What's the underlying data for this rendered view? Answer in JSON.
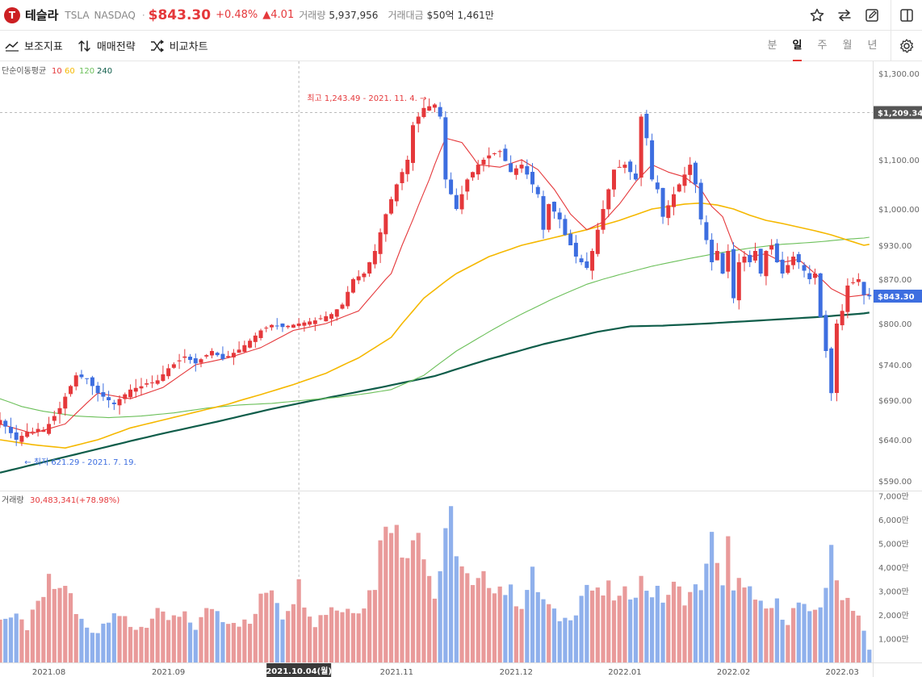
{
  "header": {
    "logo_letter": "T",
    "name": "테슬라",
    "ticker": "TSLA",
    "exchange": "NASDAQ",
    "separator": "·",
    "price": "$843.30",
    "change_pct": "+0.48%",
    "change_abs": "▲4.01",
    "volume_label": "거래량",
    "volume_value": "5,937,956",
    "turnover_label": "거래대금",
    "turnover_value": "$50억 1,461만"
  },
  "toolbar": {
    "indicators_label": "보조지표",
    "strategy_label": "매매전략",
    "compare_label": "비교차트",
    "periods": [
      "분",
      "일",
      "주",
      "월",
      "년"
    ],
    "active_period": "일"
  },
  "colors": {
    "up": "#e5383b",
    "down": "#3d6ee0",
    "up_volume": "#e99a9a",
    "down_volume": "#8fb0ec",
    "ma10": "#e5383b",
    "ma60": "#f5b800",
    "ma120": "#6cc05a",
    "ma240": "#0f5d4a",
    "tesla": "#cc1f22"
  },
  "chart_data": {
    "type": "candlestick",
    "legend": {
      "title": "단순이동평균",
      "periods": [
        "10",
        "60",
        "120",
        "240"
      ]
    },
    "price_ticks": [
      "$1,300.00",
      "$1,100.00",
      "$1,000.00",
      "$930.00",
      "$870.00",
      "$800.00",
      "$740.00",
      "$690.00",
      "$640.00",
      "$590.00"
    ],
    "price_tick_values": [
      1300,
      1100,
      1000,
      930,
      870,
      800,
      740,
      690,
      640,
      590
    ],
    "x_labels": [
      "2021.08",
      "2021.09",
      "2021.11",
      "2021.12",
      "2022.01",
      "2022.02",
      "2022.03"
    ],
    "x_label_index": [
      9,
      31,
      73,
      95,
      115,
      135,
      155
    ],
    "crosshair": {
      "label": "2021.10.04(월)",
      "index": 55,
      "price": 1209.34,
      "price_label": "$1,209.34"
    },
    "last_price": {
      "value": 843.3,
      "label": "$843.30"
    },
    "high_annotation": {
      "text": "최고 1,243.49 - 2021. 11. 4. →",
      "value": 1243.49,
      "index": 80
    },
    "low_annotation": {
      "text": "← 최저 621.29 - 2021. 7. 19.",
      "value": 621.29,
      "index": 3
    },
    "volume": {
      "title": "거래량",
      "value": "30,483,341",
      "change": "(+78.98%)",
      "ticks": [
        "7,000만",
        "6,000만",
        "5,000만",
        "4,000만",
        "3,000만",
        "2,000만",
        "1,000만"
      ],
      "tick_values": [
        70,
        60,
        50,
        40,
        30,
        20,
        10
      ],
      "unit": "만"
    },
    "price_ylim": [
      590,
      1300
    ],
    "close_anchors": [
      [
        0,
        665
      ],
      [
        3,
        640
      ],
      [
        5,
        650
      ],
      [
        8,
        650
      ],
      [
        11,
        680
      ],
      [
        14,
        725
      ],
      [
        16,
        720
      ],
      [
        18,
        700
      ],
      [
        21,
        685
      ],
      [
        24,
        705
      ],
      [
        27,
        712
      ],
      [
        29,
        718
      ],
      [
        31,
        735
      ],
      [
        34,
        752
      ],
      [
        36,
        742
      ],
      [
        39,
        760
      ],
      [
        41,
        748
      ],
      [
        44,
        762
      ],
      [
        46,
        775
      ],
      [
        48,
        790
      ],
      [
        50,
        798
      ],
      [
        52,
        795
      ],
      [
        55,
        800
      ],
      [
        58,
        805
      ],
      [
        61,
        815
      ],
      [
        63,
        830
      ],
      [
        65,
        870
      ],
      [
        67,
        880
      ],
      [
        69,
        920
      ],
      [
        71,
        990
      ],
      [
        73,
        1050
      ],
      [
        75,
        1100
      ],
      [
        76,
        1180
      ],
      [
        78,
        1220
      ],
      [
        80,
        1228
      ],
      [
        81,
        1200
      ],
      [
        82,
        1060
      ],
      [
        83,
        1030
      ],
      [
        84,
        1000
      ],
      [
        86,
        1060
      ],
      [
        88,
        1090
      ],
      [
        90,
        1110
      ],
      [
        92,
        1120
      ],
      [
        94,
        1075
      ],
      [
        96,
        1090
      ],
      [
        98,
        1050
      ],
      [
        99,
        1030
      ],
      [
        100,
        960
      ],
      [
        101,
        1010
      ],
      [
        103,
        980
      ],
      [
        104,
        950
      ],
      [
        106,
        910
      ],
      [
        108,
        890
      ],
      [
        109,
        920
      ],
      [
        111,
        1000
      ],
      [
        113,
        1080
      ],
      [
        115,
        1090
      ],
      [
        117,
        1060
      ],
      [
        118,
        1200
      ],
      [
        119,
        1150
      ],
      [
        120,
        1060
      ],
      [
        121,
        1040
      ],
      [
        122,
        985
      ],
      [
        124,
        1030
      ],
      [
        125,
        1050
      ],
      [
        127,
        1090
      ],
      [
        128,
        1050
      ],
      [
        129,
        980
      ],
      [
        130,
        940
      ],
      [
        131,
        900
      ],
      [
        132,
        920
      ],
      [
        133,
        880
      ],
      [
        134,
        920
      ],
      [
        135,
        840
      ],
      [
        136,
        900
      ],
      [
        137,
        910
      ],
      [
        138,
        900
      ],
      [
        139,
        920
      ],
      [
        140,
        880
      ],
      [
        141,
        920
      ],
      [
        142,
        930
      ],
      [
        143,
        900
      ],
      [
        144,
        880
      ],
      [
        146,
        910
      ],
      [
        147,
        900
      ],
      [
        149,
        870
      ],
      [
        150,
        880
      ],
      [
        151,
        810
      ],
      [
        152,
        760
      ],
      [
        153,
        700
      ],
      [
        154,
        800
      ],
      [
        155,
        820
      ],
      [
        156,
        860
      ],
      [
        158,
        870
      ],
      [
        159,
        845
      ],
      [
        160,
        843
      ]
    ],
    "volume_anchors": [
      [
        0,
        20
      ],
      [
        3,
        18
      ],
      [
        5,
        15
      ],
      [
        8,
        28
      ],
      [
        9,
        33
      ],
      [
        11,
        30
      ],
      [
        12,
        34
      ],
      [
        14,
        20
      ],
      [
        16,
        15
      ],
      [
        18,
        13
      ],
      [
        21,
        23
      ],
      [
        24,
        14
      ],
      [
        27,
        16
      ],
      [
        29,
        20
      ],
      [
        31,
        18
      ],
      [
        34,
        19
      ],
      [
        36,
        15
      ],
      [
        39,
        24
      ],
      [
        41,
        19
      ],
      [
        44,
        17
      ],
      [
        46,
        16
      ],
      [
        48,
        26
      ],
      [
        50,
        33
      ],
      [
        52,
        20
      ],
      [
        55,
        32
      ],
      [
        58,
        17
      ],
      [
        61,
        24
      ],
      [
        63,
        22
      ],
      [
        65,
        23
      ],
      [
        67,
        25
      ],
      [
        69,
        34
      ],
      [
        71,
        63
      ],
      [
        72,
        63
      ],
      [
        74,
        45
      ],
      [
        76,
        55
      ],
      [
        77,
        62
      ],
      [
        78,
        45
      ],
      [
        80,
        28
      ],
      [
        82,
        50
      ],
      [
        83,
        60
      ],
      [
        85,
        40
      ],
      [
        87,
        30
      ],
      [
        88,
        33
      ],
      [
        90,
        35
      ],
      [
        92,
        32
      ],
      [
        94,
        29
      ],
      [
        96,
        25
      ],
      [
        98,
        36
      ],
      [
        100,
        26
      ],
      [
        102,
        20
      ],
      [
        104,
        18
      ],
      [
        106,
        23
      ],
      [
        108,
        33
      ],
      [
        110,
        28
      ],
      [
        112,
        30
      ],
      [
        114,
        26
      ],
      [
        116,
        30
      ],
      [
        118,
        34
      ],
      [
        120,
        30
      ],
      [
        122,
        27
      ],
      [
        124,
        31
      ],
      [
        126,
        28
      ],
      [
        128,
        30
      ],
      [
        130,
        38
      ],
      [
        131,
        50
      ],
      [
        132,
        46
      ],
      [
        133,
        33
      ],
      [
        134,
        49
      ],
      [
        135,
        28
      ],
      [
        137,
        36
      ],
      [
        139,
        24
      ],
      [
        141,
        22
      ],
      [
        143,
        24
      ],
      [
        145,
        18
      ],
      [
        147,
        25
      ],
      [
        149,
        19
      ],
      [
        151,
        25
      ],
      [
        152,
        33
      ],
      [
        153,
        44
      ],
      [
        154,
        34
      ],
      [
        155,
        30
      ],
      [
        157,
        24
      ],
      [
        158,
        20
      ],
      [
        160,
        5
      ]
    ],
    "ma10_anchors": [
      [
        0,
        660
      ],
      [
        6,
        648
      ],
      [
        12,
        660
      ],
      [
        18,
        700
      ],
      [
        24,
        692
      ],
      [
        30,
        708
      ],
      [
        36,
        740
      ],
      [
        42,
        750
      ],
      [
        48,
        765
      ],
      [
        54,
        790
      ],
      [
        60,
        800
      ],
      [
        66,
        820
      ],
      [
        72,
        880
      ],
      [
        76,
        980
      ],
      [
        79,
        1060
      ],
      [
        82,
        1150
      ],
      [
        85,
        1140
      ],
      [
        88,
        1090
      ],
      [
        92,
        1085
      ],
      [
        96,
        1100
      ],
      [
        99,
        1080
      ],
      [
        102,
        1040
      ],
      [
        105,
        990
      ],
      [
        108,
        960
      ],
      [
        111,
        975
      ],
      [
        114,
        1010
      ],
      [
        117,
        1055
      ],
      [
        120,
        1090
      ],
      [
        123,
        1075
      ],
      [
        126,
        1065
      ],
      [
        129,
        1040
      ],
      [
        131,
        1005
      ],
      [
        133,
        985
      ],
      [
        135,
        930
      ],
      [
        138,
        910
      ],
      [
        141,
        915
      ],
      [
        144,
        900
      ],
      [
        147,
        905
      ],
      [
        150,
        880
      ],
      [
        153,
        855
      ],
      [
        156,
        842
      ],
      [
        159,
        845
      ]
    ],
    "ma60_anchors": [
      [
        0,
        640
      ],
      [
        6,
        634
      ],
      [
        12,
        630
      ],
      [
        18,
        640
      ],
      [
        24,
        655
      ],
      [
        30,
        665
      ],
      [
        36,
        675
      ],
      [
        42,
        685
      ],
      [
        48,
        698
      ],
      [
        54,
        712
      ],
      [
        60,
        728
      ],
      [
        66,
        750
      ],
      [
        72,
        780
      ],
      [
        78,
        840
      ],
      [
        84,
        880
      ],
      [
        90,
        910
      ],
      [
        96,
        930
      ],
      [
        102,
        945
      ],
      [
        108,
        960
      ],
      [
        114,
        978
      ],
      [
        120,
        1000
      ],
      [
        126,
        1010
      ],
      [
        129,
        1012
      ],
      [
        132,
        1008
      ],
      [
        135,
        1000
      ],
      [
        138,
        988
      ],
      [
        141,
        978
      ],
      [
        144,
        972
      ],
      [
        147,
        965
      ],
      [
        150,
        958
      ],
      [
        153,
        950
      ],
      [
        156,
        940
      ],
      [
        159,
        930
      ]
    ],
    "ma120_anchors": [
      [
        0,
        692
      ],
      [
        4,
        682
      ],
      [
        8,
        676
      ],
      [
        14,
        670
      ],
      [
        20,
        668
      ],
      [
        26,
        670
      ],
      [
        32,
        674
      ],
      [
        38,
        680
      ],
      [
        44,
        684
      ],
      [
        50,
        686
      ],
      [
        56,
        690
      ],
      [
        62,
        694
      ],
      [
        68,
        700
      ],
      [
        72,
        705
      ],
      [
        78,
        725
      ],
      [
        84,
        760
      ],
      [
        90,
        788
      ],
      [
        96,
        815
      ],
      [
        102,
        840
      ],
      [
        108,
        862
      ],
      [
        114,
        878
      ],
      [
        120,
        893
      ],
      [
        126,
        905
      ],
      [
        132,
        916
      ],
      [
        138,
        925
      ],
      [
        144,
        932
      ],
      [
        150,
        936
      ],
      [
        156,
        942
      ],
      [
        159,
        944
      ]
    ],
    "ma240_anchors": [
      [
        0,
        600
      ],
      [
        10,
        616
      ],
      [
        20,
        632
      ],
      [
        30,
        648
      ],
      [
        40,
        663
      ],
      [
        50,
        679
      ],
      [
        60,
        693
      ],
      [
        70,
        708
      ],
      [
        80,
        724
      ],
      [
        90,
        748
      ],
      [
        100,
        770
      ],
      [
        110,
        788
      ],
      [
        116,
        796
      ],
      [
        122,
        797
      ],
      [
        130,
        800
      ],
      [
        140,
        805
      ],
      [
        150,
        810
      ],
      [
        159,
        816
      ]
    ]
  }
}
